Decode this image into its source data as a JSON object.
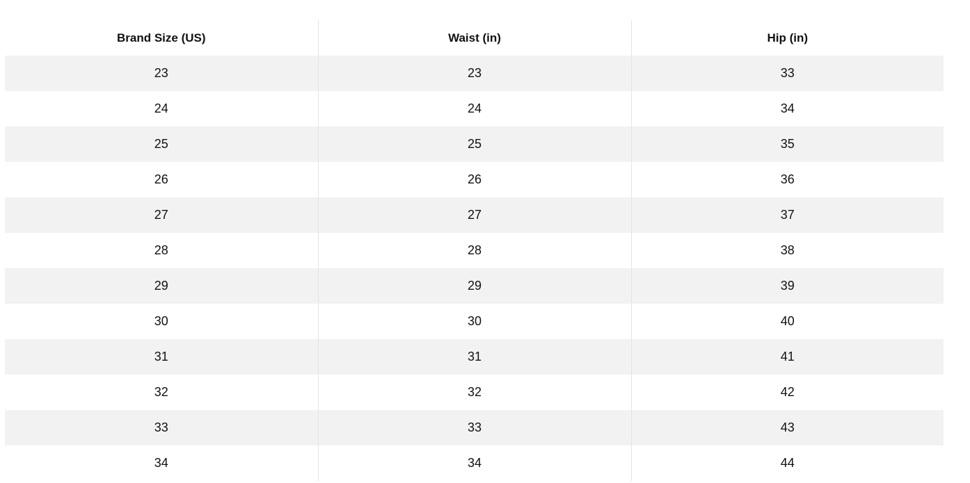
{
  "table": {
    "headers": [
      "Brand Size (US)",
      "Waist (in)",
      "Hip (in)"
    ],
    "rows": [
      [
        "23",
        "23",
        "33"
      ],
      [
        "24",
        "24",
        "34"
      ],
      [
        "25",
        "25",
        "35"
      ],
      [
        "26",
        "26",
        "36"
      ],
      [
        "27",
        "27",
        "37"
      ],
      [
        "28",
        "28",
        "38"
      ],
      [
        "29",
        "29",
        "39"
      ],
      [
        "30",
        "30",
        "40"
      ],
      [
        "31",
        "31",
        "41"
      ],
      [
        "32",
        "32",
        "42"
      ],
      [
        "33",
        "33",
        "43"
      ],
      [
        "34",
        "34",
        "44"
      ]
    ],
    "stripe_color": "#f2f2f2"
  }
}
